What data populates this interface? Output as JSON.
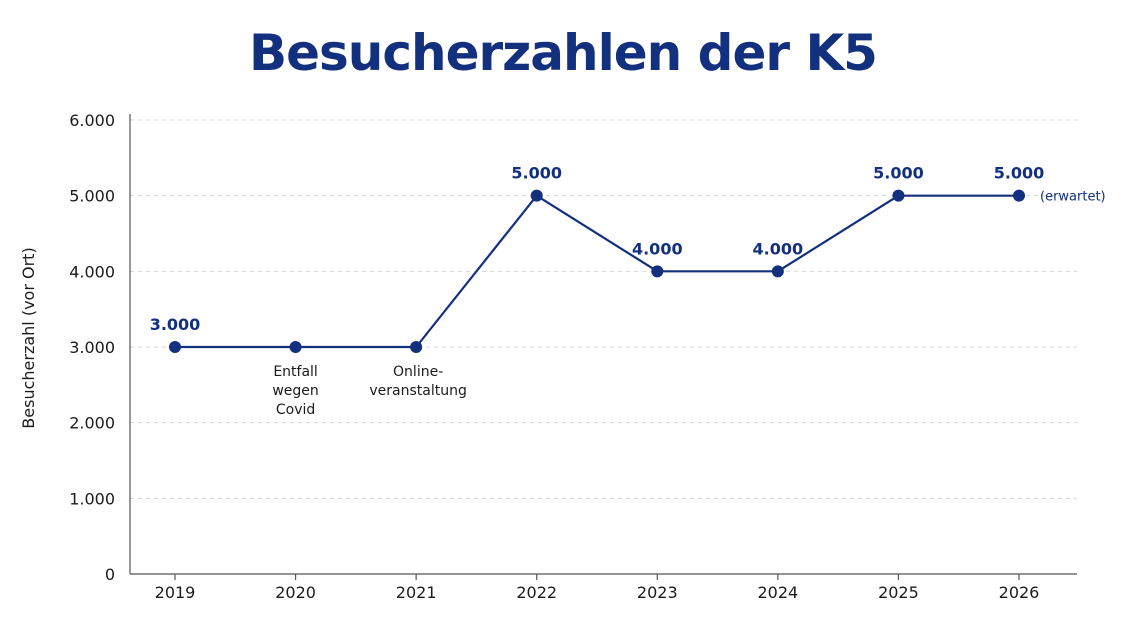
{
  "chart_data": {
    "type": "line",
    "title": "Besucherzahlen der K5",
    "xlabel": "",
    "ylabel": "Besucherzahl (vor Ort)",
    "categories": [
      "2019",
      "2020",
      "2021",
      "2022",
      "2023",
      "2024",
      "2025",
      "2026"
    ],
    "values": [
      3000,
      3000,
      3000,
      5000,
      4000,
      4000,
      5000,
      5000
    ],
    "value_labels": [
      "3.000",
      "",
      "",
      "5.000",
      "4.000",
      "4.000",
      "5.000",
      "5.000"
    ],
    "ylim": [
      0,
      6000
    ],
    "yticks": [
      0,
      1000,
      2000,
      3000,
      4000,
      5000,
      6000
    ],
    "ytick_labels": [
      "0",
      "1.000",
      "2.000",
      "3.000",
      "4.000",
      "5.000",
      "6.000"
    ],
    "grid": true,
    "line_color": "#12307e",
    "annotations": [
      {
        "category": "2020",
        "lines": [
          "Entfall",
          "wegen",
          "Covid"
        ]
      },
      {
        "category": "2021",
        "lines": [
          "Online-",
          "veranstaltung"
        ]
      },
      {
        "category": "2026",
        "lines": [
          "(erwartet)"
        ]
      }
    ]
  }
}
